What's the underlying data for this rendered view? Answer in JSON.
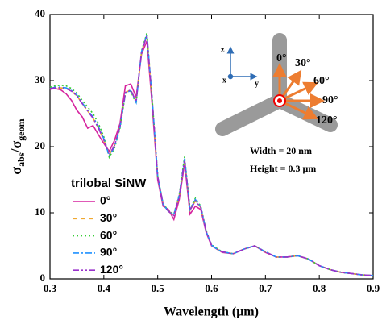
{
  "chart_data": {
    "type": "line",
    "xlabel": "Wavelength (μm)",
    "ylabel_parts": [
      "σ",
      "abs",
      "/σ",
      "geom"
    ],
    "legend_title": "trilobal SiNW",
    "xlim": [
      0.3,
      0.9
    ],
    "xticks": [
      0.3,
      0.4,
      0.5,
      0.6,
      0.7,
      0.8,
      0.9
    ],
    "ylim": [
      0,
      40
    ],
    "yticks": [
      0,
      10,
      20,
      30,
      40
    ],
    "grid": false,
    "x": [
      0.3,
      0.31,
      0.32,
      0.33,
      0.34,
      0.35,
      0.36,
      0.37,
      0.38,
      0.39,
      0.4,
      0.41,
      0.42,
      0.43,
      0.44,
      0.45,
      0.46,
      0.47,
      0.48,
      0.49,
      0.5,
      0.51,
      0.52,
      0.53,
      0.54,
      0.55,
      0.56,
      0.57,
      0.58,
      0.59,
      0.6,
      0.61,
      0.62,
      0.64,
      0.66,
      0.68,
      0.7,
      0.72,
      0.74,
      0.76,
      0.78,
      0.8,
      0.82,
      0.84,
      0.86,
      0.88,
      0.9
    ],
    "series": [
      {
        "name": "0°",
        "color": "#d6249f",
        "dash": "none",
        "values": [
          28.7,
          28.8,
          28.6,
          28.0,
          27.0,
          25.5,
          24.5,
          22.8,
          23.2,
          21.8,
          20.5,
          19.3,
          21.0,
          23.5,
          29.2,
          29.5,
          27.5,
          34.0,
          36.0,
          26.0,
          15.0,
          11.0,
          10.5,
          9.0,
          12.0,
          17.5,
          9.8,
          11.0,
          10.5,
          7.0,
          5.0,
          4.5,
          4.0,
          3.8,
          4.5,
          5.0,
          4.0,
          3.3,
          3.3,
          3.5,
          3.0,
          2.0,
          1.4,
          1.0,
          0.8,
          0.6,
          0.5
        ]
      },
      {
        "name": "30°",
        "color": "#f0a830",
        "dash": "6,4",
        "values": [
          28.8,
          28.9,
          28.9,
          28.8,
          28.4,
          27.7,
          26.5,
          25.4,
          24.3,
          22.8,
          21.0,
          18.8,
          20.2,
          23.0,
          28.2,
          28.6,
          26.8,
          34.4,
          36.8,
          26.8,
          15.5,
          11.3,
          10.2,
          9.6,
          12.5,
          18.0,
          10.4,
          11.8,
          10.8,
          7.2,
          5.1,
          4.5,
          4.1,
          3.8,
          4.5,
          5.0,
          4.1,
          3.3,
          3.3,
          3.5,
          3.0,
          2.0,
          1.4,
          1.0,
          0.8,
          0.6,
          0.5
        ]
      },
      {
        "name": "60°",
        "color": "#33cc33",
        "dash": "2,3",
        "values": [
          29.0,
          29.2,
          29.3,
          29.2,
          28.8,
          28.1,
          27.0,
          26.0,
          25.0,
          23.5,
          21.5,
          18.4,
          19.8,
          22.8,
          28.0,
          28.4,
          26.5,
          34.5,
          37.2,
          27.0,
          15.6,
          11.4,
          10.3,
          9.8,
          12.8,
          18.5,
          10.6,
          12.2,
          11.0,
          7.3,
          5.2,
          4.6,
          4.1,
          3.8,
          4.5,
          5.0,
          4.1,
          3.3,
          3.3,
          3.5,
          3.0,
          2.0,
          1.4,
          1.0,
          0.8,
          0.6,
          0.5
        ]
      },
      {
        "name": "90°",
        "color": "#1e90ff",
        "dash": "8,3,2,3",
        "values": [
          28.8,
          29.0,
          29.0,
          28.9,
          28.5,
          27.8,
          26.6,
          25.5,
          24.5,
          23.0,
          21.2,
          18.6,
          20.0,
          23.0,
          28.1,
          28.5,
          26.7,
          34.4,
          36.9,
          26.9,
          15.5,
          11.3,
          10.2,
          9.7,
          12.6,
          18.2,
          10.5,
          12.0,
          10.9,
          7.2,
          5.1,
          4.5,
          4.1,
          3.8,
          4.5,
          5.0,
          4.1,
          3.3,
          3.3,
          3.5,
          3.0,
          2.0,
          1.4,
          1.0,
          0.8,
          0.6,
          0.5
        ]
      },
      {
        "name": "120°",
        "color": "#9932cc",
        "dash": "8,3,2,3,2,3",
        "values": [
          28.8,
          28.9,
          28.9,
          28.8,
          28.4,
          27.7,
          26.5,
          25.4,
          24.3,
          22.8,
          21.0,
          18.8,
          20.2,
          23.0,
          28.2,
          28.6,
          26.8,
          34.4,
          36.8,
          26.8,
          15.5,
          11.3,
          10.2,
          9.6,
          12.5,
          18.0,
          10.4,
          11.8,
          10.8,
          7.2,
          5.1,
          4.5,
          4.1,
          3.8,
          4.5,
          5.0,
          4.1,
          3.3,
          3.3,
          3.5,
          3.0,
          2.0,
          1.4,
          1.0,
          0.8,
          0.6,
          0.5
        ]
      }
    ],
    "annotations": {
      "axis_z": "z",
      "axis_x": "x",
      "axis_y": "y",
      "angle_0": "0°",
      "angle_30": "30°",
      "angle_60": "60°",
      "angle_90": "90°",
      "angle_120": "120°",
      "width": "Width  = 20 nm",
      "height": "Height = 0.3 μm"
    }
  }
}
